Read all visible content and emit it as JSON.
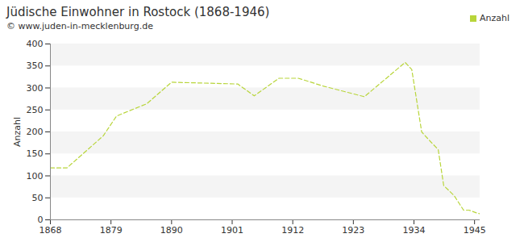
{
  "chart_data": {
    "type": "line",
    "title": "Jüdische Einwohner in Rostock (1868-1946)",
    "subtitle": "© www.juden-in-mecklenburg.de",
    "y_label": "Anzahl",
    "x": [
      1868,
      1871,
      1877.6,
      1880,
      1885.5,
      1890,
      1902,
      1905,
      1909.5,
      1913,
      1917.6,
      1925,
      1932.4,
      1933.6,
      1935.4,
      1937,
      1938.4,
      1939.4,
      1941.3,
      1943,
      1944,
      1945.5,
      1946
    ],
    "series": [
      {
        "name": "Anzahl",
        "color": "#b8d53a",
        "line_style": "dashed",
        "marker": "none",
        "values": [
          118,
          118,
          191,
          236,
          264,
          313,
          309,
          282,
          322,
          322,
          304,
          280,
          358,
          342,
          200,
          178,
          160,
          78,
          55,
          22,
          22,
          15,
          14
        ]
      }
    ],
    "xlim": [
      1868,
      1946
    ],
    "xticks": [
      1868,
      1879,
      1890,
      1901,
      1912,
      1923,
      1934,
      1945
    ],
    "ylim": [
      0,
      400
    ],
    "yticks": [
      0,
      50,
      100,
      150,
      200,
      250,
      300,
      350,
      400
    ],
    "grid": true,
    "legend": "top-right"
  }
}
